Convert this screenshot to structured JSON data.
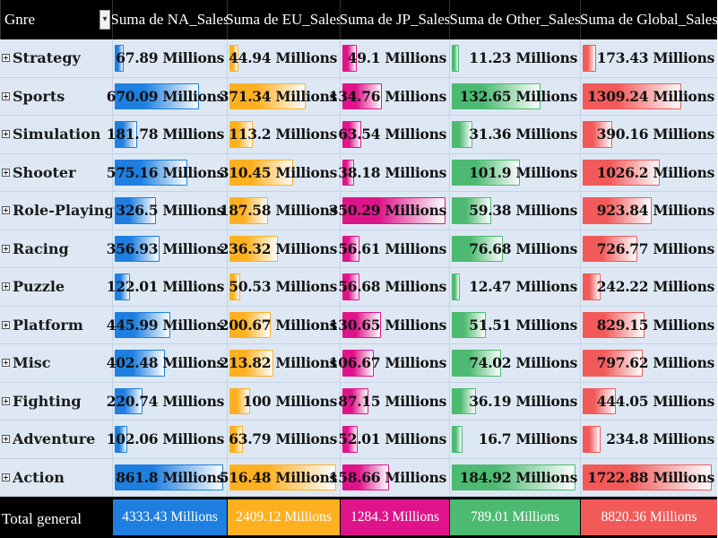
{
  "chart_data": {
    "type": "table",
    "row_header": "Gnre",
    "columns": [
      {
        "key": "na",
        "label": "Suma de NA_Sales",
        "color": "#1e7fe0",
        "max": 861.8
      },
      {
        "key": "eu",
        "label": "Suma de EU_Sales",
        "color": "#ffb020",
        "max": 516.48
      },
      {
        "key": "jp",
        "label": "Suma de JP_Sales",
        "color": "#e0148a",
        "max": 350.29
      },
      {
        "key": "other",
        "label": "Suma de Other_Sales",
        "color": "#4cba70",
        "max": 184.92
      },
      {
        "key": "global",
        "label": "Suma de Global_Sales",
        "color": "#f25a5a",
        "max": 1722.88
      }
    ],
    "unit": "Millions",
    "rows": [
      {
        "genre": "Strategy",
        "values": [
          67.89,
          44.94,
          49.1,
          11.23,
          173.43
        ],
        "labels": [
          "67.89 Millions",
          "44.94 Millions",
          "49.1 Millions",
          "11.23 Millions",
          "173.43 Millions"
        ]
      },
      {
        "genre": "Sports",
        "values": [
          670.09,
          371.34,
          134.76,
          132.65,
          1309.24
        ],
        "labels": [
          "670.09 Millions",
          "371.34 Millions",
          "134.76 Millions",
          "132.65 Millions",
          "1309.24 Millions"
        ]
      },
      {
        "genre": "Simulation",
        "values": [
          181.78,
          113.2,
          63.54,
          31.36,
          390.16
        ],
        "labels": [
          "181.78 Millions",
          "113.2 Millions",
          "63.54 Millions",
          "31.36 Millions",
          "390.16 Millions"
        ]
      },
      {
        "genre": "Shooter",
        "values": [
          575.16,
          310.45,
          38.18,
          101.9,
          1026.2
        ],
        "labels": [
          "575.16 Millions",
          "310.45 Millions",
          "38.18 Millions",
          "101.9 Millions",
          "1026.2 Millions"
        ]
      },
      {
        "genre": "Role-Playing",
        "values": [
          326.5,
          187.58,
          350.29,
          59.38,
          923.84
        ],
        "labels": [
          "326.5 Millions",
          "187.58 Millions",
          "350.29 Millions",
          "59.38 Millions",
          "923.84 Millions"
        ]
      },
      {
        "genre": "Racing",
        "values": [
          356.93,
          236.32,
          56.61,
          76.68,
          726.77
        ],
        "labels": [
          "356.93 Millions",
          "236.32 Millions",
          "56.61 Millions",
          "76.68 Millions",
          "726.77 Millions"
        ]
      },
      {
        "genre": "Puzzle",
        "values": [
          122.01,
          50.53,
          56.68,
          12.47,
          242.22
        ],
        "labels": [
          "122.01 Millions",
          "50.53 Millions",
          "56.68 Millions",
          "12.47 Millions",
          "242.22 Millions"
        ]
      },
      {
        "genre": "Platform",
        "values": [
          445.99,
          200.67,
          130.65,
          51.51,
          829.15
        ],
        "labels": [
          "445.99 Millions",
          "200.67 Millions",
          "130.65 Millions",
          "51.51 Millions",
          "829.15 Millions"
        ]
      },
      {
        "genre": "Misc",
        "values": [
          402.48,
          213.82,
          106.67,
          74.02,
          797.62
        ],
        "labels": [
          "402.48 Millions",
          "213.82 Millions",
          "106.67 Millions",
          "74.02 Millions",
          "797.62 Millions"
        ]
      },
      {
        "genre": "Fighting",
        "values": [
          220.74,
          100,
          87.15,
          36.19,
          444.05
        ],
        "labels": [
          "220.74 Millions",
          "100 Millions",
          "87.15 Millions",
          "36.19 Millions",
          "444.05 Millions"
        ]
      },
      {
        "genre": "Adventure",
        "values": [
          102.06,
          63.79,
          52.01,
          16.7,
          234.8
        ],
        "labels": [
          "102.06 Millions",
          "63.79 Millions",
          "52.01 Millions",
          "16.7 Millions",
          "234.8 Millions"
        ]
      },
      {
        "genre": "Action",
        "values": [
          861.8,
          516.48,
          158.66,
          184.92,
          1722.88
        ],
        "labels": [
          "861.8 Millions",
          "516.48 Millions",
          "158.66 Millions",
          "184.92 Millions",
          "1722.88 Millions"
        ]
      }
    ],
    "total": {
      "label": "Total general",
      "values": [
        4333.43,
        2409.12,
        1284.3,
        789.01,
        8820.36
      ],
      "labels": [
        "4333.43 Millions",
        "2409.12 Millions",
        "1284.3 Millions",
        "789.01 Millions",
        "8820.36 Millions"
      ]
    }
  },
  "icons": {
    "filter": "filter-dropdown-icon",
    "expand": "expand-plus-icon"
  },
  "glyphs": {
    "filter": "▾",
    "expand": "+"
  }
}
